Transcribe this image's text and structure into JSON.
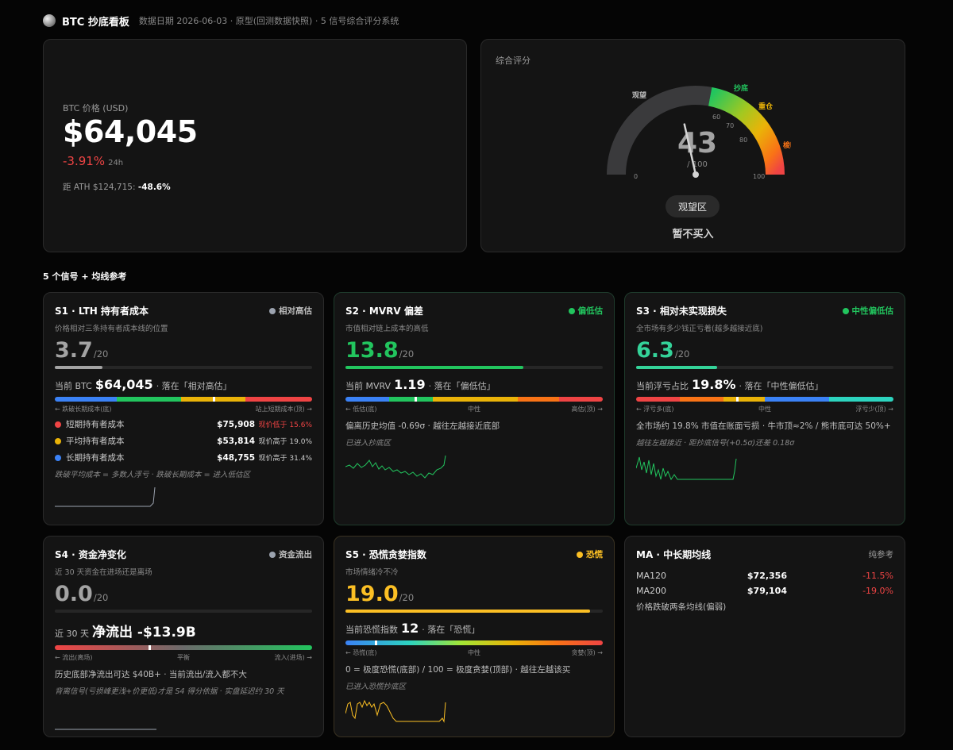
{
  "header": {
    "title": "BTC 抄底看板",
    "subtitle": "数据日期 2026-06-03 · 原型(回测数据快照) · 5 信号综合评分系统"
  },
  "price_card": {
    "label": "BTC 价格 (USD)",
    "price": "$64,045",
    "change": "-3.91%",
    "change_period": "24h",
    "ath_prefix": "距 ATH $124,715:",
    "ath_value": "-48.6%"
  },
  "score_card": {
    "label": "综合评分",
    "score": "43",
    "score_den": "/ 100",
    "score_value": 43,
    "zones": {
      "watch": "观望",
      "bottom": "抄底",
      "heavy": "重仓",
      "sell": "梭哈"
    },
    "ticks": {
      "t0": "0",
      "t60": "60",
      "t70": "70",
      "t80": "80",
      "t100": "100"
    },
    "zone_pill": "观望区",
    "action": "暂不买入",
    "colors": {
      "track": "#3a3a3c",
      "green": "#22c55e",
      "yellow": "#eab308",
      "orange": "#f97316",
      "red": "#ef4444"
    }
  },
  "section_title": "5 个信号 + 均线参考",
  "s1": {
    "title": "S1 · LTH 持有者成本",
    "badge": "相对高估",
    "badge_color": "#9ca3af",
    "desc": "价格相对三条持有者成本线的位置",
    "score": "3.7",
    "den": "/20",
    "score_value": 3.7,
    "max": 20,
    "cur_prefix": "当前 BTC",
    "cur_value": "$64,045",
    "cur_suffix": "· 落在「相对高估」",
    "scale_left": "← 跌破长期成本(底)",
    "scale_right": "站上短期成本(顶) →",
    "rows": [
      {
        "label": "短期持有者成本",
        "color": "#ef4444",
        "value": "$75,908",
        "note": "现价低于 15.6%"
      },
      {
        "label": "平均持有者成本",
        "color": "#eab308",
        "value": "$53,814",
        "note": "现价高于 19.0%"
      },
      {
        "label": "长期持有者成本",
        "color": "#3b82f6",
        "value": "$48,755",
        "note": "现价高于 31.4%"
      }
    ],
    "footnote": "跌破平均成本 = 多数人浮亏 · 跌破长期成本 = 进入低估区"
  },
  "s2": {
    "title": "S2 · MVRV 偏差",
    "badge": "偏低估",
    "badge_color": "#22c55e",
    "desc": "市值相对链上成本的高低",
    "score": "13.8",
    "den": "/20",
    "score_value": 13.8,
    "max": 20,
    "cur_prefix": "当前 MVRV",
    "cur_value": "1.19",
    "cur_suffix": "· 落在「偏低估」",
    "scale_left": "← 低估(底)",
    "scale_mid": "中性",
    "scale_right": "高估(顶) →",
    "info": "偏离历史均值 -0.69σ · 越往左越接近底部",
    "italic": "已进入抄底区"
  },
  "s3": {
    "title": "S3 · 相对未实现损失",
    "badge": "中性偏低估",
    "badge_color": "#22c55e",
    "desc": "全市场有多少钱正亏着(越多越接近底)",
    "score": "6.3",
    "den": "/20",
    "score_value": 6.3,
    "max": 20,
    "cur_prefix": "当前浮亏占比",
    "cur_value": "19.8%",
    "cur_suffix": "· 落在「中性偏低估」",
    "scale_left": "← 浮亏多(底)",
    "scale_mid": "中性",
    "scale_right": "浮亏少(顶) →",
    "info": "全市场约 19.8% 市值在账面亏损 · 牛市顶≈2% / 熊市底可达 50%+",
    "italic": "越往左越接近 · 距抄底信号(+0.5σ)还差 0.18σ"
  },
  "s4": {
    "title": "S4 · 资金净变化",
    "badge": "资金流出",
    "badge_color": "#9ca3af",
    "desc": "近 30 天资金在进场还是离场",
    "score": "0.0",
    "den": "/20",
    "score_value": 0,
    "max": 20,
    "cur_prefix": "近 30 天",
    "cur_value": "净流出 -$13.9B",
    "scale_left": "← 流出(离场)",
    "scale_mid": "平衡",
    "scale_right": "流入(进场) →",
    "info": "历史底部净流出可达 $40B+ · 当前流出/流入都不大",
    "italic": "背离信号(亏损峰更浅+价更低)才是 S4 得分依据 · 实盘延迟约 30 天"
  },
  "s5": {
    "title": "S5 · 恐慌贪婪指数",
    "badge": "恐慌",
    "badge_color": "#fbbf24",
    "desc": "市场情绪冷不冷",
    "score": "19.0",
    "den": "/20",
    "score_value": 19.0,
    "max": 20,
    "cur_prefix": "当前恐慌指数",
    "cur_value": "12",
    "cur_suffix": "· 落在「恐慌」",
    "scale_left": "← 恐慌(底)",
    "scale_mid": "中性",
    "scale_right": "贪婪(顶) →",
    "info": "0 = 极度恐慌(底部) / 100 = 极度贪婪(顶部) · 越往左越该买",
    "italic": "已进入恐慌抄底区"
  },
  "ma": {
    "title": "MA · 中长期均线",
    "badge": "纯参考",
    "rows": [
      {
        "name": "MA120",
        "value": "$72,356",
        "pct": "-11.5%"
      },
      {
        "name": "MA200",
        "value": "$79,104",
        "pct": "-19.0%"
      }
    ],
    "note": "价格跌破两条均线(偏弱)"
  }
}
